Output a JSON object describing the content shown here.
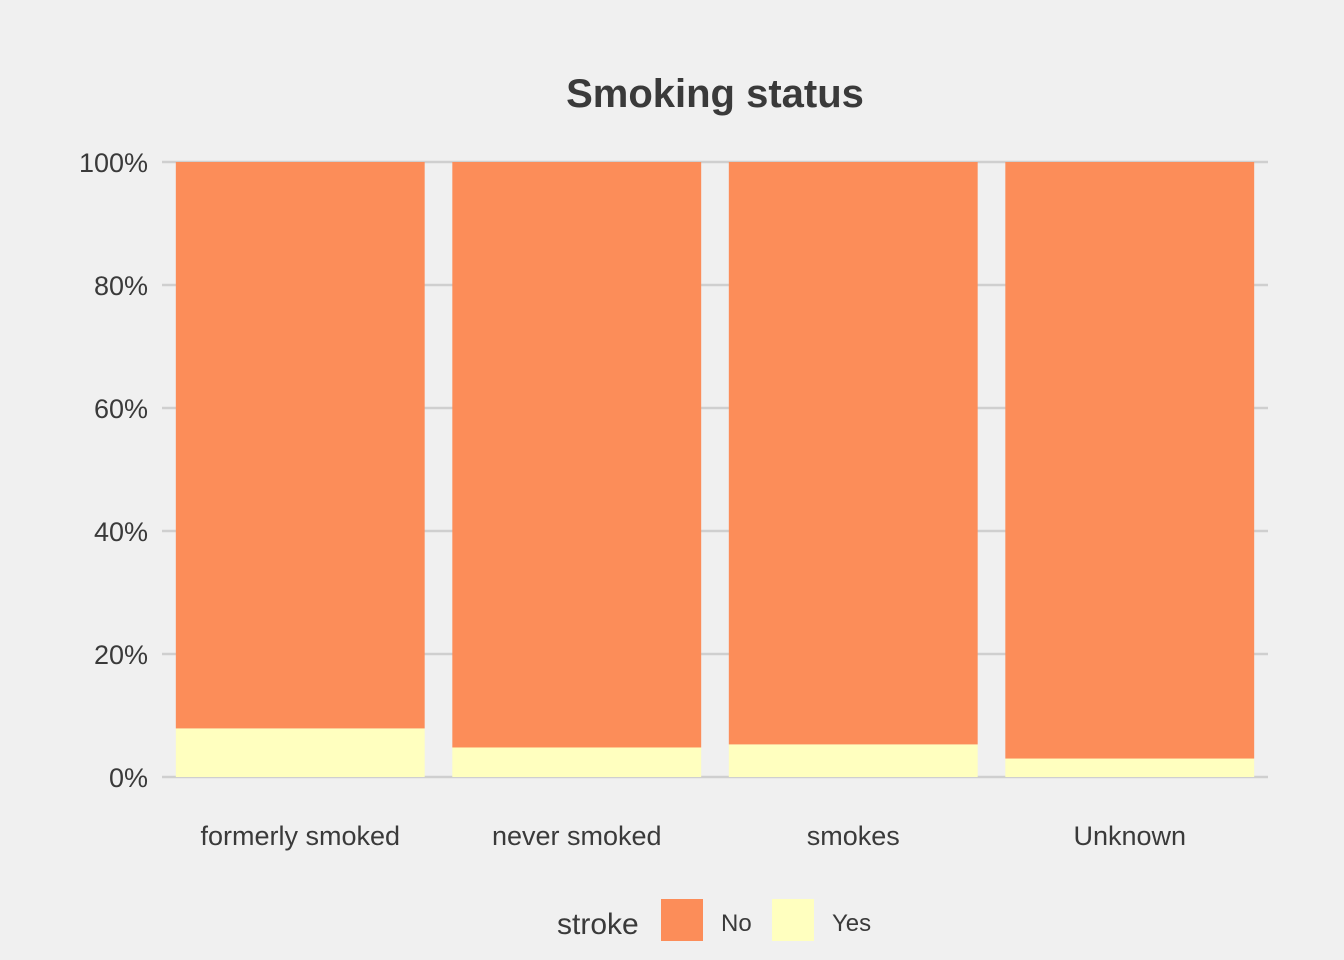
{
  "chart_data": {
    "type": "bar",
    "stacked": true,
    "normalized": true,
    "title": "Smoking status",
    "xlabel": "",
    "ylabel": "",
    "categories": [
      "formerly smoked",
      "never smoked",
      "smokes",
      "Unknown"
    ],
    "series": [
      {
        "name": "No",
        "values": [
          92.1,
          95.2,
          94.7,
          97.0
        ],
        "color": "#fc8d59"
      },
      {
        "name": "Yes",
        "values": [
          7.9,
          4.8,
          5.3,
          3.0
        ],
        "color": "#ffffbf"
      }
    ],
    "y_ticks": [
      "0%",
      "20%",
      "40%",
      "60%",
      "80%",
      "100%"
    ],
    "ylim": [
      0,
      100
    ],
    "grid": "horizontal major only",
    "legend": {
      "title": "stroke",
      "position": "bottom",
      "items": [
        "No",
        "Yes"
      ]
    },
    "background_color": "#f0f0f0",
    "text_color": "#3a3a3a"
  }
}
